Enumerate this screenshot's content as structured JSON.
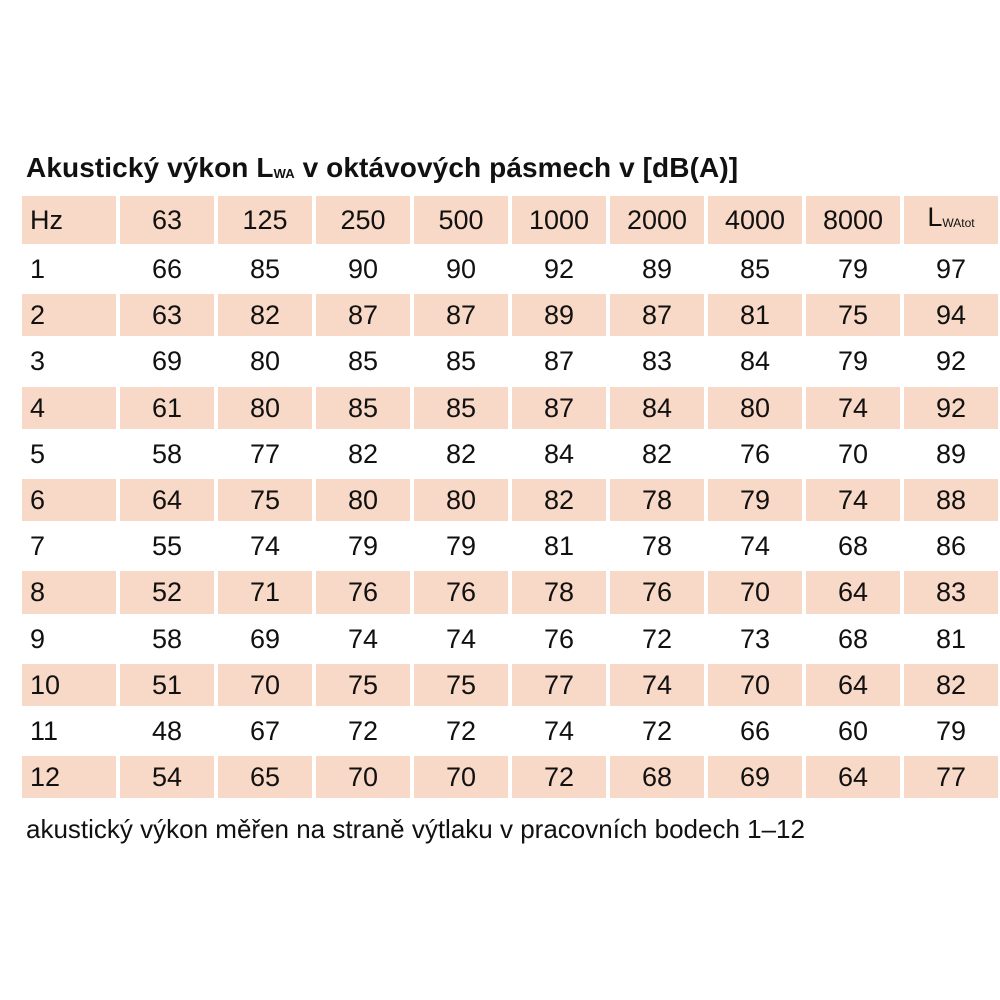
{
  "title": {
    "main": "Akustický výkon L",
    "sub": "WA",
    "rest": " v oktávových pásmech v [dB(A)]"
  },
  "table": {
    "header": {
      "label": "Hz",
      "bands": [
        "63",
        "125",
        "250",
        "500",
        "1000",
        "2000",
        "4000",
        "8000"
      ],
      "total_main": "L",
      "total_sub": "WAtot"
    },
    "rows": [
      {
        "point": "1",
        "values": [
          "66",
          "85",
          "90",
          "90",
          "92",
          "89",
          "85",
          "79",
          "97"
        ]
      },
      {
        "point": "2",
        "values": [
          "63",
          "82",
          "87",
          "87",
          "89",
          "87",
          "81",
          "75",
          "94"
        ]
      },
      {
        "point": "3",
        "values": [
          "69",
          "80",
          "85",
          "85",
          "87",
          "83",
          "84",
          "79",
          "92"
        ]
      },
      {
        "point": "4",
        "values": [
          "61",
          "80",
          "85",
          "85",
          "87",
          "84",
          "80",
          "74",
          "92"
        ]
      },
      {
        "point": "5",
        "values": [
          "58",
          "77",
          "82",
          "82",
          "84",
          "82",
          "76",
          "70",
          "89"
        ]
      },
      {
        "point": "6",
        "values": [
          "64",
          "75",
          "80",
          "80",
          "82",
          "78",
          "79",
          "74",
          "88"
        ]
      },
      {
        "point": "7",
        "values": [
          "55",
          "74",
          "79",
          "79",
          "81",
          "78",
          "74",
          "68",
          "86"
        ]
      },
      {
        "point": "8",
        "values": [
          "52",
          "71",
          "76",
          "76",
          "78",
          "76",
          "70",
          "64",
          "83"
        ]
      },
      {
        "point": "9",
        "values": [
          "58",
          "69",
          "74",
          "74",
          "76",
          "72",
          "73",
          "68",
          "81"
        ]
      },
      {
        "point": "10",
        "values": [
          "51",
          "70",
          "75",
          "75",
          "77",
          "74",
          "70",
          "64",
          "82"
        ]
      },
      {
        "point": "11",
        "values": [
          "48",
          "67",
          "72",
          "72",
          "74",
          "72",
          "66",
          "60",
          "79"
        ]
      },
      {
        "point": "12",
        "values": [
          "54",
          "65",
          "70",
          "70",
          "72",
          "68",
          "69",
          "64",
          "77"
        ]
      }
    ]
  },
  "colors": {
    "row_shade": "#f8d8c6",
    "text": "#111111"
  },
  "footnote": "akustický výkon měřen na straně výtlaku v pracovních bodech 1–12"
}
